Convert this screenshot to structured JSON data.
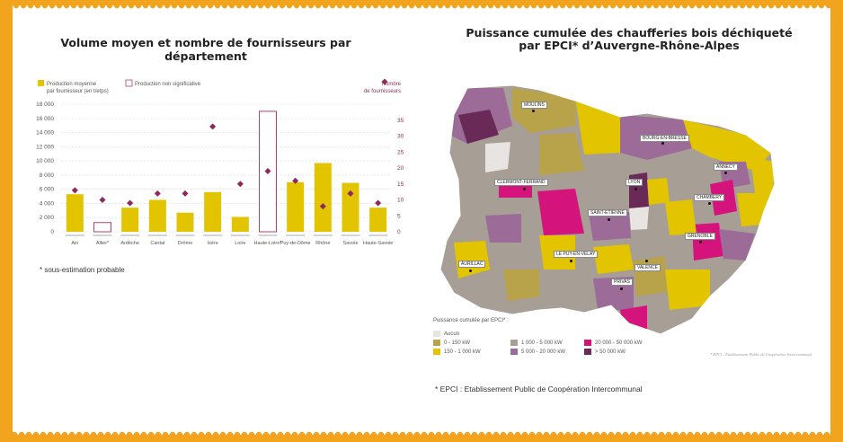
{
  "left_panel": {
    "title": "Volume moyen et nombre de fournisseurs par département",
    "footnote": "* sous-estimation probable"
  },
  "right_panel": {
    "title_line1": "Puissance cumulée des chaufferies bois déchiqueté",
    "title_line2": "par EPCI* d’Auvergne-Rhône-Alpes",
    "footnote": "* EPCI : Etablissement Public de Coopération Intercommunal"
  },
  "colors": {
    "production": "#e2c400",
    "suppliers": "#8a2a5e",
    "non_significant": "#b0416e",
    "orange_frame": "#f2a41f"
  },
  "chart_data": {
    "type": "bar",
    "categories": [
      "Ain",
      "Allier*",
      "Ardèche",
      "Cantal",
      "Drôme",
      "Isère",
      "Loire",
      "Haute-Loire*",
      "Puy-de-Dôme",
      "Rhône",
      "Savoie",
      "Haute-Savoie"
    ],
    "series": [
      {
        "name": "Production moyenne par fournisseur (en t/etps)",
        "axis": "left",
        "values": [
          5300,
          1300,
          3400,
          4500,
          2700,
          5600,
          2100,
          17000,
          7000,
          9700,
          6900,
          3400
        ]
      },
      {
        "name": "Nombre de fournisseurs",
        "axis": "right",
        "marker": "diamond",
        "values": [
          13,
          10,
          9,
          12,
          12,
          33,
          15,
          19,
          16,
          8,
          12,
          9
        ]
      }
    ],
    "non_significant": [
      "Allier*",
      "Haute-Loire*"
    ],
    "legend": {
      "production_label_line1": "Production moyenne",
      "production_label_line2": "par fournisseur (en t/etps)",
      "non_significant_label": "Production non significative",
      "suppliers_label_line1": "Nombre",
      "suppliers_label_line2": "de fournisseurs"
    },
    "y_left": {
      "ylim": [
        0,
        18000
      ],
      "ticks": [
        "0",
        "2 000",
        "4 000",
        "6 000",
        "8 000",
        "10 000",
        "12 000",
        "14 000",
        "16 000",
        "18 000"
      ]
    },
    "y_right": {
      "ylim": [
        0,
        40
      ],
      "ticks": [
        "0",
        "5",
        "10",
        "15",
        "20",
        "25",
        "30",
        "35"
      ]
    },
    "grid": "dashed horizontal"
  },
  "map": {
    "legend_title": "Puissance cumulée par EPCI* :",
    "legend": [
      {
        "label": "Aucun",
        "color": "#e8e4e2"
      },
      {
        "label": "0 - 150 kW",
        "color": "#b8a24a"
      },
      {
        "label": "150 - 1 000 kW",
        "color": "#e2c400"
      },
      {
        "label": "1 000 - 5 000 kW",
        "color": "#a79e96"
      },
      {
        "label": "5 000 - 20 000 kW",
        "color": "#9d6b98"
      },
      {
        "label": "20 000 - 50 000 kW",
        "color": "#d4147c"
      },
      {
        "label": "> 50 000 kW",
        "color": "#6a2a58"
      }
    ],
    "credit": "* EPCI : Etablissement Public de Coopération Intercommunal",
    "cities": [
      "MOULINS",
      "BOURG-EN-BRESSE",
      "CLERMONT-FERRAND",
      "LYON",
      "ANNECY",
      "CHAMBERY",
      "SAINT-ETIENNE",
      "GRENOBLE",
      "LE PUY-EN-VELAY",
      "VALENCE",
      "AURILLAC",
      "PRIVAS"
    ]
  }
}
